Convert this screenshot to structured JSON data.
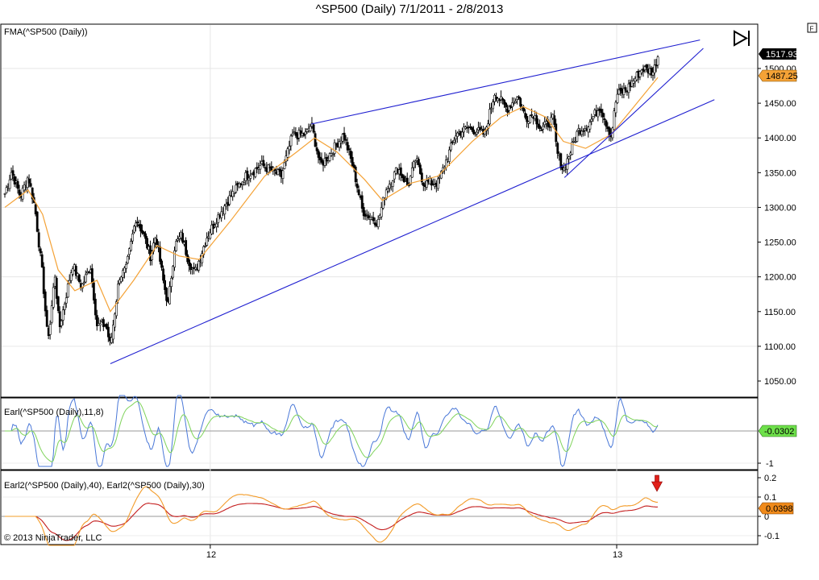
{
  "window": {
    "title": "^SP500 (Daily)  7/1/2011 - 2/8/2013",
    "corner_button": "F",
    "copyright": "© 2013 NinjaTrader, LLC"
  },
  "panels": {
    "price": {
      "label": "FMA(^SP500 (Daily))",
      "last_price_tag": "1517.93",
      "fma_tag": "1487.25"
    },
    "earl": {
      "label": "Earl(^SP500 (Daily),11,8)",
      "value_tag": "-0.0302"
    },
    "earl2": {
      "label": "Earl2(^SP500 (Daily),40), Earl2(^SP500 (Daily),30)",
      "value_tag": "0.0398"
    }
  },
  "colors": {
    "up_candle": "#ffffff",
    "down_candle": "#000000",
    "fma_line": "#f4a236",
    "trendline": "#1f1fd0",
    "earl_fast": "#4a78d8",
    "earl_slow": "#7ed35a",
    "earl2_40": "#c41e1e",
    "earl2_30": "#f39c2a",
    "price_tag_bg": "#000000",
    "fma_tag_bg": "#f4a236",
    "earl_tag_bg": "#6ee04a",
    "earl2_tag_bg": "#f08a1a",
    "signal_arrow": "#e0201a"
  },
  "chart_data": [
    {
      "type": "candlestick",
      "title": "^SP500 (Daily)  7/1/2011 - 2/8/2013",
      "x_range": [
        "2011-07-01",
        "2013-02-08"
      ],
      "x_tick_labels": [
        "12",
        "13"
      ],
      "ylim": [
        1030,
        1560
      ],
      "y_tick_labels": [
        "1050.00",
        "1100.00",
        "1150.00",
        "1200.00",
        "1250.00",
        "1300.00",
        "1350.00",
        "1400.00",
        "1450.00",
        "1500.00"
      ],
      "price_path": [
        [
          "2011-07-01",
          1320
        ],
        [
          "2011-07-07",
          1352
        ],
        [
          "2011-07-15",
          1315
        ],
        [
          "2011-07-22",
          1345
        ],
        [
          "2011-07-28",
          1300
        ],
        [
          "2011-08-04",
          1200
        ],
        [
          "2011-08-08",
          1119
        ],
        [
          "2011-08-10",
          1120
        ],
        [
          "2011-08-15",
          1205
        ],
        [
          "2011-08-19",
          1125
        ],
        [
          "2011-08-26",
          1180
        ],
        [
          "2011-08-31",
          1218
        ],
        [
          "2011-09-08",
          1185
        ],
        [
          "2011-09-16",
          1216
        ],
        [
          "2011-09-22",
          1130
        ],
        [
          "2011-09-30",
          1131
        ],
        [
          "2011-10-04",
          1100
        ],
        [
          "2011-10-12",
          1200
        ],
        [
          "2011-10-18",
          1210
        ],
        [
          "2011-10-27",
          1285
        ],
        [
          "2011-11-03",
          1260
        ],
        [
          "2011-11-09",
          1230
        ],
        [
          "2011-11-14",
          1260
        ],
        [
          "2011-11-21",
          1190
        ],
        [
          "2011-11-25",
          1160
        ],
        [
          "2011-12-01",
          1245
        ],
        [
          "2011-12-07",
          1260
        ],
        [
          "2011-12-13",
          1225
        ],
        [
          "2011-12-19",
          1205
        ],
        [
          "2011-12-30",
          1258
        ],
        [
          "2012-01-10",
          1290
        ],
        [
          "2012-01-20",
          1315
        ],
        [
          "2012-02-03",
          1345
        ],
        [
          "2012-02-17",
          1361
        ],
        [
          "2012-03-06",
          1345
        ],
        [
          "2012-03-16",
          1404
        ],
        [
          "2012-03-28",
          1405
        ],
        [
          "2012-04-02",
          1420
        ],
        [
          "2012-04-10",
          1360
        ],
        [
          "2012-04-20",
          1380
        ],
        [
          "2012-05-01",
          1405
        ],
        [
          "2012-05-10",
          1355
        ],
        [
          "2012-05-18",
          1295
        ],
        [
          "2012-06-01",
          1278
        ],
        [
          "2012-06-08",
          1325
        ],
        [
          "2012-06-19",
          1357
        ],
        [
          "2012-06-28",
          1330
        ],
        [
          "2012-07-05",
          1370
        ],
        [
          "2012-07-12",
          1335
        ],
        [
          "2012-07-25",
          1335
        ],
        [
          "2012-08-10",
          1405
        ],
        [
          "2012-08-22",
          1415
        ],
        [
          "2012-09-05",
          1405
        ],
        [
          "2012-09-14",
          1465
        ],
        [
          "2012-09-25",
          1442
        ],
        [
          "2012-10-05",
          1460
        ],
        [
          "2012-10-12",
          1428
        ],
        [
          "2012-10-19",
          1435
        ],
        [
          "2012-10-26",
          1412
        ],
        [
          "2012-11-06",
          1428
        ],
        [
          "2012-11-09",
          1380
        ],
        [
          "2012-11-15",
          1353
        ],
        [
          "2012-11-28",
          1410
        ],
        [
          "2012-12-07",
          1418
        ],
        [
          "2012-12-18",
          1446
        ],
        [
          "2012-12-28",
          1402
        ],
        [
          "2013-01-02",
          1462
        ],
        [
          "2013-01-11",
          1470
        ],
        [
          "2013-01-25",
          1500
        ],
        [
          "2013-02-04",
          1495
        ],
        [
          "2013-02-08",
          1518
        ]
      ],
      "fma_path": [
        [
          "2011-07-01",
          1300
        ],
        [
          "2011-07-22",
          1325
        ],
        [
          "2011-08-04",
          1290
        ],
        [
          "2011-08-18",
          1210
        ],
        [
          "2011-09-02",
          1180
        ],
        [
          "2011-09-22",
          1195
        ],
        [
          "2011-10-04",
          1150
        ],
        [
          "2011-10-25",
          1195
        ],
        [
          "2011-11-15",
          1245
        ],
        [
          "2011-12-05",
          1230
        ],
        [
          "2011-12-23",
          1225
        ],
        [
          "2012-01-20",
          1280
        ],
        [
          "2012-02-20",
          1345
        ],
        [
          "2012-03-20",
          1380
        ],
        [
          "2012-04-05",
          1400
        ],
        [
          "2012-04-25",
          1380
        ],
        [
          "2012-05-20",
          1340
        ],
        [
          "2012-06-05",
          1310
        ],
        [
          "2012-07-01",
          1335
        ],
        [
          "2012-07-25",
          1345
        ],
        [
          "2012-08-25",
          1395
        ],
        [
          "2012-09-20",
          1430
        ],
        [
          "2012-10-10",
          1445
        ],
        [
          "2012-10-30",
          1430
        ],
        [
          "2012-11-15",
          1395
        ],
        [
          "2012-12-05",
          1385
        ],
        [
          "2012-12-28",
          1405
        ],
        [
          "2013-01-15",
          1440
        ],
        [
          "2013-02-08",
          1487
        ]
      ],
      "trendlines": [
        {
          "from": [
            "2011-10-04",
            1075
          ],
          "to": [
            "2013-03-31",
            1455
          ]
        },
        {
          "from": [
            "2012-04-02",
            1420
          ],
          "to": [
            "2013-03-18",
            1541
          ]
        },
        {
          "from": [
            "2012-11-16",
            1343
          ],
          "to": [
            "2013-03-21",
            1529
          ]
        }
      ],
      "last_price": 1517.93,
      "fma_value": 1487.25
    },
    {
      "type": "line",
      "title": "Earl(^SP500 (Daily),11,8)",
      "ylim": [
        -1.15,
        1.15
      ],
      "y_tick_labels": [
        "-1"
      ],
      "last_value": -0.0302
    },
    {
      "type": "line",
      "title": "Earl2(^SP500 (Daily),40), Earl2(^SP500 (Daily),30)",
      "ylim": [
        -0.155,
        0.215
      ],
      "y_tick_labels": [
        "0.2",
        "0.1",
        "0",
        "-0.1"
      ],
      "last_value": 0.0398
    }
  ]
}
